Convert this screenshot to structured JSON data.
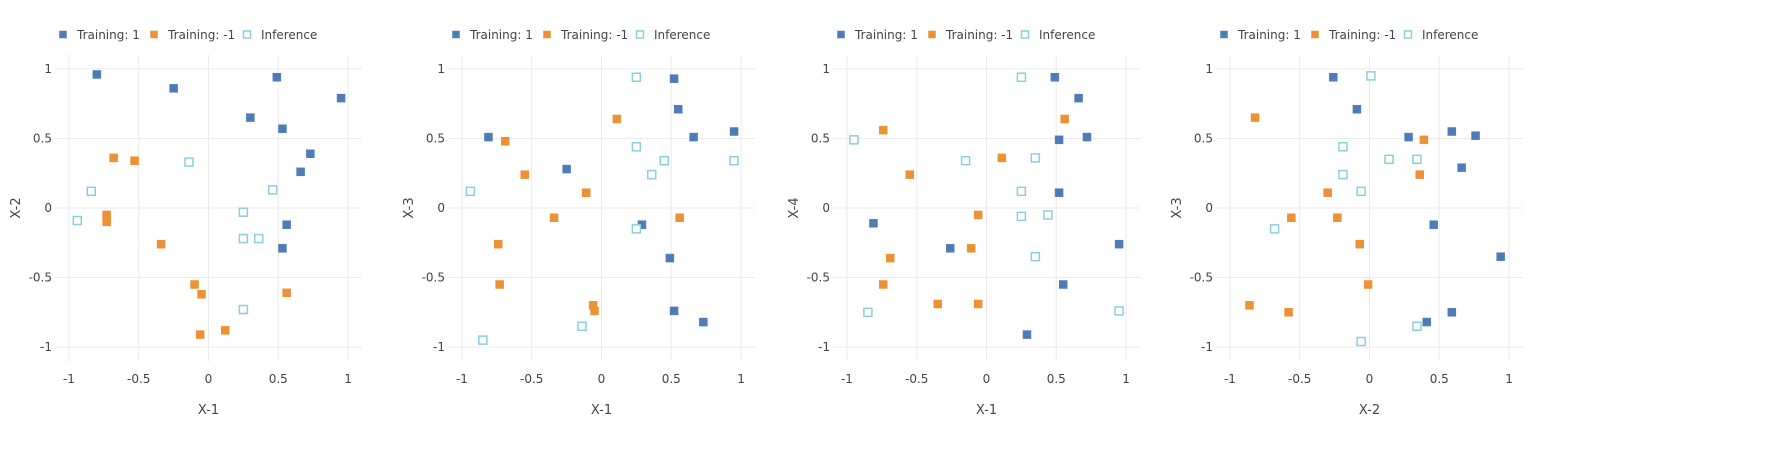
{
  "colors": {
    "training_pos": "#4f7cb8",
    "training_neg": "#ec9234",
    "inference": "#8ccfdc",
    "grid": "#ebebeb"
  },
  "legend": [
    "Training: 1",
    "Training: -1",
    "Inference"
  ],
  "chart_data": [
    {
      "type": "scatter",
      "xlabel": "X-1",
      "ylabel": "X-2",
      "xlim": [
        -1.1,
        1.1
      ],
      "ylim": [
        -1.1,
        1.1
      ],
      "grid": true,
      "legend_position": "top-left",
      "xticks": [
        "-1",
        "-0.5",
        "0",
        "0.5",
        "1"
      ],
      "yticks": [
        "-1",
        "-0.5",
        "0",
        "0.5",
        "1"
      ],
      "series": [
        {
          "name": "Training: 1",
          "points": [
            [
              -0.8,
              0.96
            ],
            [
              -0.25,
              0.86
            ],
            [
              0.49,
              0.94
            ],
            [
              0.3,
              0.65
            ],
            [
              0.53,
              0.57
            ],
            [
              0.95,
              0.79
            ],
            [
              0.73,
              0.39
            ],
            [
              0.66,
              0.26
            ],
            [
              0.56,
              -0.12
            ],
            [
              0.53,
              -0.29
            ]
          ]
        },
        {
          "name": "Training: -1",
          "points": [
            [
              -0.68,
              0.36
            ],
            [
              -0.53,
              0.34
            ],
            [
              -0.73,
              -0.05
            ],
            [
              -0.73,
              -0.1
            ],
            [
              -0.34,
              -0.26
            ],
            [
              -0.1,
              -0.55
            ],
            [
              -0.05,
              -0.62
            ],
            [
              0.56,
              -0.61
            ],
            [
              -0.06,
              -0.91
            ],
            [
              0.12,
              -0.88
            ]
          ]
        },
        {
          "name": "Inference",
          "points": [
            [
              -0.14,
              0.33
            ],
            [
              -0.84,
              0.12
            ],
            [
              -0.94,
              -0.09
            ],
            [
              0.46,
              0.13
            ],
            [
              0.25,
              -0.03
            ],
            [
              0.25,
              -0.22
            ],
            [
              0.36,
              -0.22
            ],
            [
              0.25,
              -0.73
            ]
          ]
        }
      ]
    },
    {
      "type": "scatter",
      "xlabel": "X-1",
      "ylabel": "X-3",
      "xlim": [
        -1.1,
        1.1
      ],
      "ylim": [
        -1.1,
        1.1
      ],
      "grid": true,
      "legend_position": "top-left",
      "xticks": [
        "-1",
        "-0.5",
        "0",
        "0.5",
        "1"
      ],
      "yticks": [
        "-1",
        "-0.5",
        "0",
        "0.5",
        "1"
      ],
      "series": [
        {
          "name": "Training: 1",
          "points": [
            [
              -0.81,
              0.51
            ],
            [
              -0.25,
              0.28
            ],
            [
              0.52,
              0.93
            ],
            [
              0.55,
              0.71
            ],
            [
              0.66,
              0.51
            ],
            [
              0.95,
              0.55
            ],
            [
              0.29,
              -0.12
            ],
            [
              0.49,
              -0.36
            ],
            [
              0.52,
              -0.74
            ],
            [
              0.73,
              -0.82
            ]
          ]
        },
        {
          "name": "Training: -1",
          "points": [
            [
              -0.69,
              0.48
            ],
            [
              -0.55,
              0.24
            ],
            [
              0.11,
              0.64
            ],
            [
              -0.11,
              0.11
            ],
            [
              -0.34,
              -0.07
            ],
            [
              -0.74,
              -0.26
            ],
            [
              -0.73,
              -0.55
            ],
            [
              0.56,
              -0.07
            ],
            [
              -0.06,
              -0.7
            ],
            [
              -0.05,
              -0.74
            ]
          ]
        },
        {
          "name": "Inference",
          "points": [
            [
              -0.94,
              0.12
            ],
            [
              0.25,
              0.94
            ],
            [
              0.25,
              0.44
            ],
            [
              0.45,
              0.34
            ],
            [
              0.36,
              0.24
            ],
            [
              0.95,
              0.34
            ],
            [
              0.25,
              -0.15
            ],
            [
              -0.14,
              -0.85
            ],
            [
              -0.85,
              -0.95
            ]
          ]
        }
      ]
    },
    {
      "type": "scatter",
      "xlabel": "X-1",
      "ylabel": "X-4",
      "xlim": [
        -1.1,
        1.1
      ],
      "ylim": [
        -1.1,
        1.1
      ],
      "grid": true,
      "legend_position": "top-left",
      "xticks": [
        "-1",
        "-0.5",
        "0",
        "0.5",
        "1"
      ],
      "yticks": [
        "-1",
        "-0.5",
        "0",
        "0.5",
        "1"
      ],
      "series": [
        {
          "name": "Training: 1",
          "points": [
            [
              0.49,
              0.94
            ],
            [
              0.66,
              0.79
            ],
            [
              0.72,
              0.51
            ],
            [
              0.52,
              0.49
            ],
            [
              0.52,
              0.11
            ],
            [
              -0.81,
              -0.11
            ],
            [
              -0.26,
              -0.29
            ],
            [
              0.55,
              -0.55
            ],
            [
              0.95,
              -0.26
            ],
            [
              0.29,
              -0.91
            ]
          ]
        },
        {
          "name": "Training: -1",
          "points": [
            [
              -0.74,
              0.56
            ],
            [
              -0.55,
              0.24
            ],
            [
              0.11,
              0.36
            ],
            [
              0.56,
              0.64
            ],
            [
              -0.06,
              -0.05
            ],
            [
              -0.11,
              -0.29
            ],
            [
              -0.69,
              -0.36
            ],
            [
              -0.74,
              -0.55
            ],
            [
              -0.35,
              -0.69
            ],
            [
              -0.06,
              -0.69
            ]
          ]
        },
        {
          "name": "Inference",
          "points": [
            [
              -0.95,
              0.49
            ],
            [
              -0.15,
              0.34
            ],
            [
              0.25,
              0.94
            ],
            [
              0.35,
              0.36
            ],
            [
              0.25,
              0.12
            ],
            [
              0.25,
              -0.06
            ],
            [
              0.44,
              -0.05
            ],
            [
              0.35,
              -0.35
            ],
            [
              -0.85,
              -0.75
            ],
            [
              0.95,
              -0.74
            ]
          ]
        }
      ]
    },
    {
      "type": "scatter",
      "xlabel": "X-2",
      "ylabel": "X-3",
      "xlim": [
        -1.1,
        1.1
      ],
      "ylim": [
        -1.1,
        1.1
      ],
      "grid": true,
      "legend_position": "top-left",
      "xticks": [
        "-1",
        "-0.5",
        "0",
        "0.5",
        "1"
      ],
      "yticks": [
        "-1",
        "-0.5",
        "0",
        "0.5",
        "1"
      ],
      "series": [
        {
          "name": "Training: 1",
          "points": [
            [
              -0.26,
              0.94
            ],
            [
              -0.09,
              0.71
            ],
            [
              0.28,
              0.51
            ],
            [
              0.59,
              0.55
            ],
            [
              0.76,
              0.52
            ],
            [
              0.66,
              0.29
            ],
            [
              0.46,
              -0.12
            ],
            [
              0.94,
              -0.35
            ],
            [
              0.59,
              -0.75
            ],
            [
              0.41,
              -0.82
            ]
          ]
        },
        {
          "name": "Training: -1",
          "points": [
            [
              -0.82,
              0.65
            ],
            [
              0.39,
              0.49
            ],
            [
              -0.3,
              0.11
            ],
            [
              0.36,
              0.24
            ],
            [
              -0.56,
              -0.07
            ],
            [
              -0.23,
              -0.07
            ],
            [
              -0.07,
              -0.26
            ],
            [
              -0.01,
              -0.55
            ],
            [
              -0.86,
              -0.7
            ],
            [
              -0.58,
              -0.75
            ]
          ]
        },
        {
          "name": "Inference",
          "points": [
            [
              0.01,
              0.95
            ],
            [
              -0.19,
              0.44
            ],
            [
              0.14,
              0.35
            ],
            [
              0.34,
              0.35
            ],
            [
              -0.19,
              0.24
            ],
            [
              -0.06,
              0.12
            ],
            [
              -0.68,
              -0.15
            ],
            [
              0.34,
              -0.85
            ],
            [
              -0.06,
              -0.96
            ]
          ]
        }
      ]
    }
  ]
}
